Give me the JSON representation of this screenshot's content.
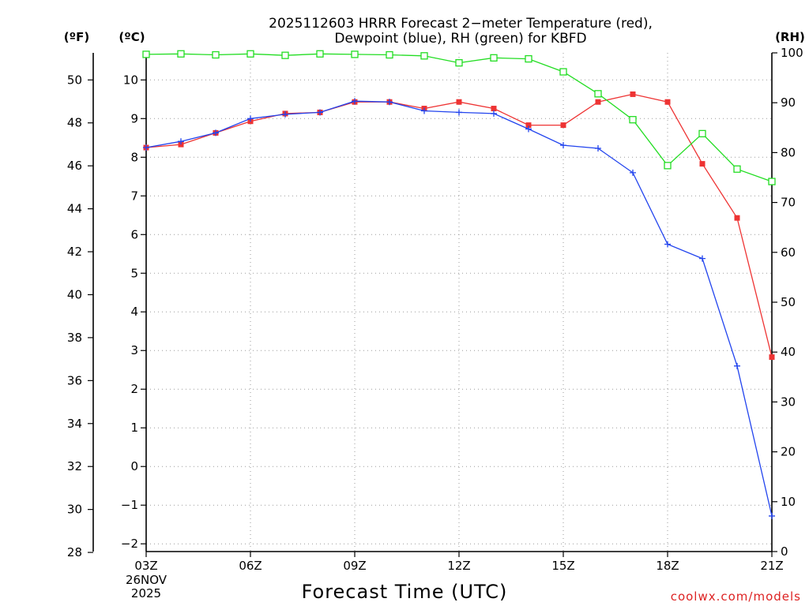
{
  "chart_data": {
    "type": "line",
    "title": "2025112603 HRRR Forecast 2−meter Temperature (red),",
    "subtitle": "Dewpoint (blue), RH (green) for KBFD",
    "xlabel": "Forecast Time (UTC)",
    "credit": "coolwx.com/models",
    "units": {
      "fahrenheit": "(ºF)",
      "celsius": "(ºC)",
      "rh": "(RH)"
    },
    "x_hours": [
      3,
      4,
      5,
      6,
      7,
      8,
      9,
      10,
      11,
      12,
      13,
      14,
      15,
      16,
      17,
      18,
      19,
      20,
      21
    ],
    "x_ticks": [
      {
        "hour": 3,
        "label": "03Z",
        "date_lines": [
          "26NOV",
          "2025"
        ]
      },
      {
        "hour": 6,
        "label": "06Z"
      },
      {
        "hour": 9,
        "label": "09Z"
      },
      {
        "hour": 12,
        "label": "12Z"
      },
      {
        "hour": 15,
        "label": "15Z"
      },
      {
        "hour": 18,
        "label": "18Z"
      },
      {
        "hour": 21,
        "label": "21Z"
      }
    ],
    "xlim": [
      3,
      21
    ],
    "celsius_axis": {
      "lim": [
        -2.2,
        10.7
      ],
      "ticks": [
        -2,
        -1,
        0,
        1,
        2,
        3,
        4,
        5,
        6,
        7,
        8,
        9,
        10
      ],
      "tick_labels": [
        "−2",
        "−1",
        "0",
        "1",
        "2",
        "3",
        "4",
        "5",
        "6",
        "7",
        "8",
        "9",
        "10"
      ]
    },
    "fahrenheit_axis": {
      "ticks": [
        28,
        30,
        32,
        34,
        36,
        38,
        40,
        42,
        44,
        46,
        48,
        50
      ],
      "tick_labels": [
        "28",
        "30",
        "32",
        "34",
        "36",
        "38",
        "40",
        "42",
        "44",
        "46",
        "48",
        "50"
      ]
    },
    "rh_axis": {
      "lim": [
        0,
        100
      ],
      "ticks": [
        0,
        10,
        20,
        30,
        40,
        50,
        60,
        70,
        80,
        90,
        100
      ],
      "tick_labels": [
        "0",
        "10",
        "20",
        "30",
        "40",
        "50",
        "60",
        "70",
        "80",
        "90",
        "100"
      ]
    },
    "series": [
      {
        "name": "Temperature",
        "axis": "celsius",
        "color": "#ee3333",
        "marker": "filled-square",
        "values": [
          8.25,
          8.33,
          8.63,
          8.93,
          9.13,
          9.16,
          9.43,
          9.43,
          9.26,
          9.43,
          9.26,
          8.83,
          8.83,
          9.43,
          9.63,
          9.43,
          7.83,
          6.43,
          2.83
        ]
      },
      {
        "name": "Dewpoint",
        "axis": "celsius",
        "color": "#2244ee",
        "marker": "plus",
        "values": [
          8.25,
          8.41,
          8.63,
          9.0,
          9.11,
          9.16,
          9.45,
          9.43,
          9.2,
          9.16,
          9.13,
          8.73,
          8.31,
          8.23,
          7.6,
          5.75,
          5.38,
          2.6,
          -1.28
        ]
      },
      {
        "name": "RH",
        "axis": "rh",
        "color": "#22dd22",
        "marker": "open-square",
        "values": [
          99.7,
          99.8,
          99.6,
          99.8,
          99.5,
          99.8,
          99.7,
          99.6,
          99.4,
          98.0,
          99.0,
          98.8,
          96.2,
          91.8,
          86.6,
          77.4,
          83.8,
          76.7,
          74.2
        ]
      }
    ]
  }
}
